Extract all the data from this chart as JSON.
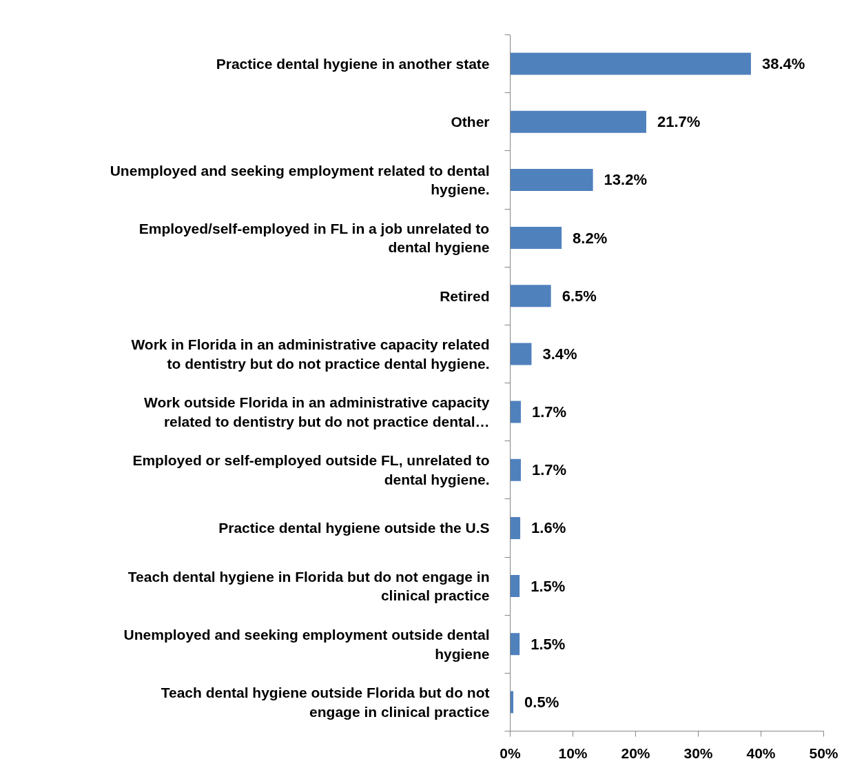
{
  "chart_data": {
    "type": "bar",
    "orientation": "horizontal",
    "categories": [
      "Practice dental hygiene in another state",
      "Other",
      "Unemployed and seeking employment related to dental hygiene.",
      "Employed/self-employed in FL in a job unrelated to dental hygiene",
      "Retired",
      "Work in Florida in an administrative capacity related to dentistry but do not practice dental hygiene.",
      "Work outside Florida in an administrative capacity related to dentistry but do not practice dental…",
      "Employed or self-employed outside FL, unrelated to dental hygiene.",
      "Practice dental hygiene outside the U.S",
      "Teach dental hygiene in Florida but do not engage in clinical practice",
      "Unemployed and seeking employment outside dental hygiene",
      "Teach dental hygiene outside Florida but do not engage in clinical practice"
    ],
    "values": [
      38.4,
      21.7,
      13.2,
      8.2,
      6.5,
      3.4,
      1.7,
      1.7,
      1.6,
      1.5,
      1.5,
      0.5
    ],
    "value_labels": [
      "38.4%",
      "21.7%",
      "13.2%",
      "8.2%",
      "6.5%",
      "3.4%",
      "1.7%",
      "1.7%",
      "1.6%",
      "1.5%",
      "1.5%",
      "0.5%"
    ],
    "color": "#4f81bd",
    "xlim": [
      0,
      50
    ],
    "xticks": [
      {
        "value": 0,
        "label": "0%"
      },
      {
        "value": 10,
        "label": "10%"
      },
      {
        "value": 20,
        "label": "20%"
      },
      {
        "value": 30,
        "label": "30%"
      },
      {
        "value": 40,
        "label": "40%"
      },
      {
        "value": 50,
        "label": "50%"
      }
    ],
    "grid": false
  }
}
